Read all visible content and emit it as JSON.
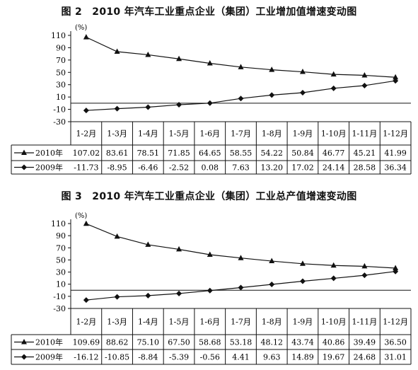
{
  "chart_data": [
    {
      "type": "line",
      "title": "图 2　2010 年汽车工业重点企业（集团）工业增加值增速变动图",
      "unit_label": "(%)",
      "categories": [
        "1-2月",
        "1-3月",
        "1-4月",
        "1-5月",
        "1-6月",
        "1-7月",
        "1-8月",
        "1-9月",
        "1-10月",
        "1-11月",
        "1-12月"
      ],
      "series": [
        {
          "name": "2010年",
          "marker": "triangle",
          "values": [
            107.02,
            83.61,
            78.51,
            71.85,
            64.65,
            58.55,
            54.22,
            50.84,
            46.77,
            45.21,
            41.99
          ],
          "labels": [
            "107.02",
            "83.61",
            "78.51",
            "71.85",
            "64.65",
            "58.55",
            "54.22",
            "50.84",
            "46.77",
            "45.21",
            "41.99"
          ]
        },
        {
          "name": "2009年",
          "marker": "diamond",
          "values": [
            -11.73,
            -8.95,
            -6.46,
            -2.52,
            0.08,
            7.63,
            13.2,
            17.02,
            24.14,
            28.58,
            36.34
          ],
          "labels": [
            "-11.73",
            "-8.95",
            "-6.46",
            "-2.52",
            "0.08",
            "7.63",
            "13.20",
            "17.02",
            "24.14",
            "28.58",
            "36.34"
          ]
        }
      ],
      "ylim": [
        -30,
        110
      ],
      "yticks": [
        "110",
        "90",
        "70",
        "50",
        "30",
        "10",
        "-10",
        "-30"
      ],
      "grid": false,
      "data_table": true
    },
    {
      "type": "line",
      "title": "图 3　2010 年汽车工业重点企业（集团）工业总产值增速变动图",
      "unit_label": "(%)",
      "categories": [
        "1-2月",
        "1-3月",
        "1-4月",
        "1-5月",
        "1-6月",
        "1-7月",
        "1-8月",
        "1-9月",
        "1-10月",
        "1-11月",
        "1-12月"
      ],
      "series": [
        {
          "name": "2010年",
          "marker": "triangle",
          "values": [
            109.69,
            88.62,
            75.1,
            67.5,
            58.68,
            53.18,
            48.12,
            43.74,
            40.86,
            39.49,
            36.5
          ],
          "labels": [
            "109.69",
            "88.62",
            "75.10",
            "67.50",
            "58.68",
            "53.18",
            "48.12",
            "43.74",
            "40.86",
            "39.49",
            "36.50"
          ]
        },
        {
          "name": "2009年",
          "marker": "diamond",
          "values": [
            -16.12,
            -10.85,
            -8.84,
            -5.39,
            -0.56,
            4.41,
            9.63,
            14.89,
            19.67,
            24.68,
            31.01
          ],
          "labels": [
            "-16.12",
            "-10.85",
            "-8.84",
            "-5.39",
            "-0.56",
            "4.41",
            "9.63",
            "14.89",
            "19.67",
            "24.68",
            "31.01"
          ]
        }
      ],
      "ylim": [
        -30,
        110
      ],
      "yticks": [
        "110",
        "90",
        "70",
        "50",
        "30",
        "10",
        "-10",
        "-30"
      ],
      "grid": false,
      "data_table": true
    }
  ]
}
